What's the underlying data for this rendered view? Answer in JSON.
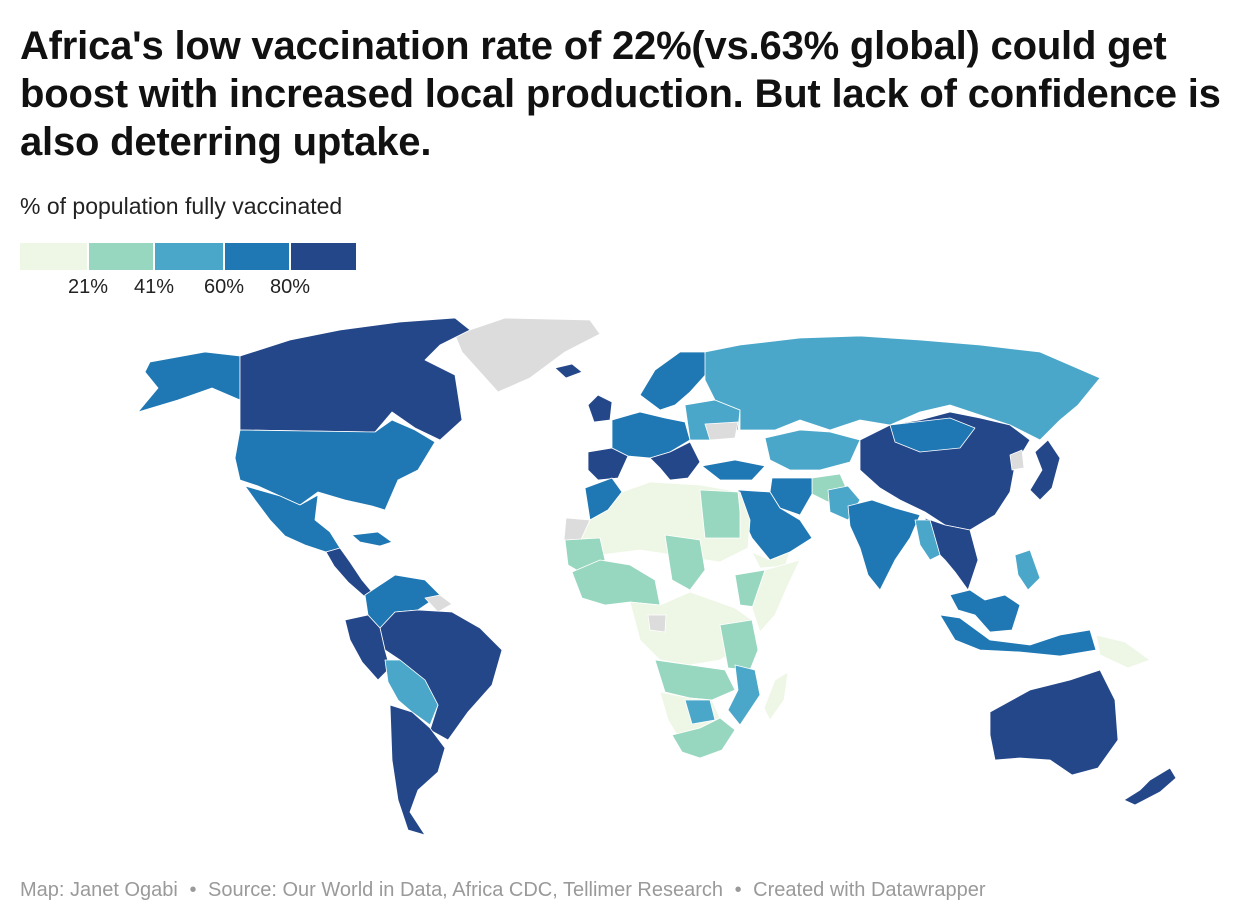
{
  "title": "Africa's low vaccination rate of 22%(vs.63% global) could get boost with increased local production. But lack of confidence is also deterring uptake.",
  "subtitle": "% of population fully vaccinated",
  "legend": {
    "bins": [
      {
        "color": "#eef7e6"
      },
      {
        "color": "#97d6bf"
      },
      {
        "color": "#4ba7c9"
      },
      {
        "color": "#1f78b4"
      },
      {
        "color": "#24478a"
      }
    ],
    "ticks": [
      "21%",
      "41%",
      "60%",
      "80%"
    ],
    "no_data_color": "#dcdcdc"
  },
  "footer": {
    "credit": "Map: Janet Ogabi",
    "source": "Source: Our World in Data, Africa CDC, Tellimer Research",
    "tool": "Created with Datawrapper",
    "separator": "•"
  }
}
